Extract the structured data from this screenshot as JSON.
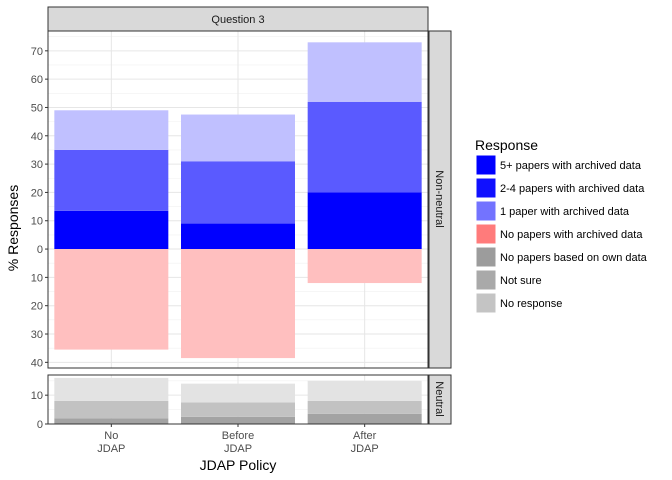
{
  "chart_data": {
    "type": "bar",
    "stacked": true,
    "diverging": true,
    "facet_title": "Question 3",
    "panels": [
      {
        "name": "Non-neutral",
        "ylim": [
          -42,
          77
        ],
        "ticks": [
          70,
          60,
          50,
          40,
          30,
          20,
          10,
          0,
          -10,
          -20,
          -30,
          -40
        ],
        "tick_labels": [
          "70",
          "60",
          "50",
          "40",
          "30",
          "20",
          "10",
          "0",
          "10",
          "20",
          "30",
          "40"
        ]
      },
      {
        "name": "Neutral",
        "ylim": [
          0,
          17
        ],
        "ticks": [
          10,
          0
        ],
        "tick_labels": [
          "10",
          "0"
        ]
      }
    ],
    "categories": [
      {
        "line1": "No",
        "line2": "JDAP"
      },
      {
        "line1": "Before",
        "line2": "JDAP"
      },
      {
        "line1": "After",
        "line2": "JDAP"
      }
    ],
    "xlabel": "JDAP Policy",
    "ylabel": "% Responses",
    "grid": true,
    "legend_position": "right",
    "legend_title": "Response",
    "series": [
      {
        "name": "5+ papers with archived data",
        "panel": "Non-neutral",
        "direction": "up",
        "color": "#0000ff",
        "legend_color": "#0000ff",
        "opacity": 1.0,
        "values": [
          13.5,
          9,
          20
        ]
      },
      {
        "name": "2-4 papers with archived data",
        "panel": "Non-neutral",
        "direction": "up",
        "color": "#5a5aff",
        "legend_color": "#1010ff",
        "opacity": 1.0,
        "values": [
          21.5,
          22,
          32
        ]
      },
      {
        "name": "1 paper with archived data",
        "panel": "Non-neutral",
        "direction": "up",
        "color": "#c0c0ff",
        "legend_color": "#7373ff",
        "opacity": 1.0,
        "values": [
          14,
          16.5,
          21
        ]
      },
      {
        "name": "No papers with archived data",
        "panel": "Non-neutral",
        "direction": "down",
        "color": "#ffbfbf",
        "legend_color": "#ff7b7b",
        "opacity": 1.0,
        "values": [
          35.5,
          38.5,
          12
        ]
      },
      {
        "name": "No papers based on own data",
        "panel": "Neutral",
        "direction": "up",
        "color": "#a3a3a3",
        "legend_color": "#9c9c9c",
        "opacity": 1.0,
        "values": [
          2,
          2.5,
          3.5
        ]
      },
      {
        "name": "Not sure",
        "panel": "Neutral",
        "direction": "up",
        "color": "#c2c2c2",
        "legend_color": "#a9a9a9",
        "opacity": 1.0,
        "values": [
          6,
          5,
          4.5
        ]
      },
      {
        "name": "No response",
        "panel": "Neutral",
        "direction": "up",
        "color": "#e3e3e3",
        "legend_color": "#c4c4c4",
        "opacity": 1.0,
        "values": [
          8,
          6.5,
          7
        ]
      }
    ]
  }
}
